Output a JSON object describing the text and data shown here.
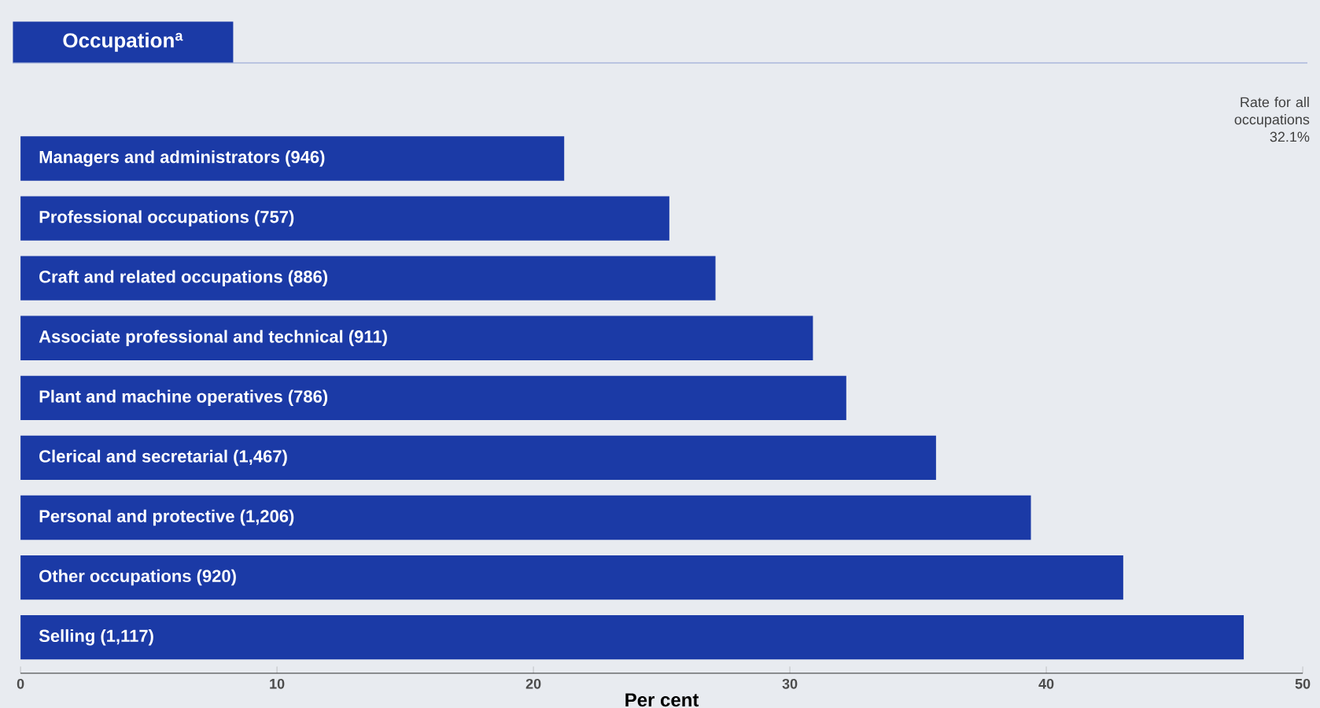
{
  "chart_data": {
    "type": "bar",
    "orientation": "horizontal",
    "title": "Occupation$^{a}$",
    "xlabel": "Per cent",
    "categories": [
      "Managers and administrators (946)",
      "Professional occupations (757)",
      "Craft and related occupations (886)",
      "Associate professional and technical (911)",
      "Plant and machine operatives (786)",
      "Clerical and secretarial (1,467)",
      "Personal and protective (1,206)",
      "Other occupations (920)",
      "Selling (1,117)"
    ],
    "values": [
      21.2,
      25.3,
      27.1,
      30.9,
      32.2,
      35.7,
      39.4,
      43.0,
      47.7
    ],
    "color": "#1b3aa6",
    "xlim": [
      0,
      50
    ],
    "xticks": [
      0,
      10,
      20,
      30,
      40,
      50
    ],
    "grid": false,
    "annotations": [
      "Rate for all occupations 32.1%"
    ]
  }
}
